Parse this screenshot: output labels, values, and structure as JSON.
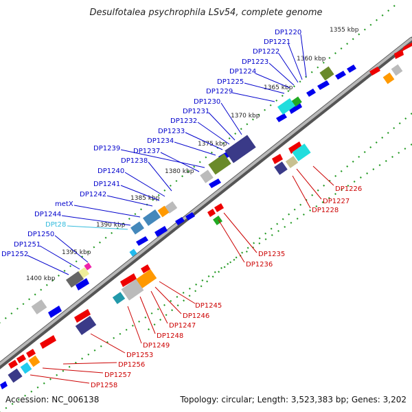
{
  "title": "Desulfotalea psychrophila LSv54, complete genome",
  "footer": {
    "accession": "Accession: NC_006138",
    "summary": "Topology: circular; Length: 3,523,383 bp; Genes: 3,202"
  },
  "ticks": [
    "1355 kbp",
    "1360 kbp",
    "1365 kbp",
    "1370 kbp",
    "1375 kbp",
    "1380 kbp",
    "1385 kbp",
    "1390 kbp",
    "1395 kbp",
    "1400 kbp"
  ],
  "labels_blue": [
    "DP1220",
    "DP1221",
    "DP1222",
    "DP1223",
    "DP1224",
    "DP1225",
    "DP1229",
    "DP1230",
    "DP1231",
    "DP1232",
    "DP1233",
    "DP1234",
    "DP1239",
    "DP1237",
    "DP1238",
    "DP1240",
    "DP1241",
    "DP1242",
    "metX",
    "DP1244",
    "DP1250",
    "DP1251",
    "DP1252"
  ],
  "label_cyan": "DPt28",
  "labels_red": [
    "DP1226",
    "DP1227",
    "DP1228",
    "DP1235",
    "DP1236",
    "DP1245",
    "DP1246",
    "DP1247",
    "DP1248",
    "DP1249",
    "DP1253",
    "DP1256",
    "DP1257",
    "DP1258"
  ],
  "colors": {
    "backbone": "#9a9a9a",
    "forward": "#0000ee",
    "reverse": "#ee0000",
    "track_dots": "#229922",
    "blue_label": "#0000cc",
    "red_label": "#cc0000",
    "cyan": "#33ccdd",
    "navy": "#3a3a88",
    "olive": "#6a8a2a",
    "orange": "#ff9900",
    "gray_box": "#bbbbbb",
    "magenta": "#ee22aa"
  }
}
